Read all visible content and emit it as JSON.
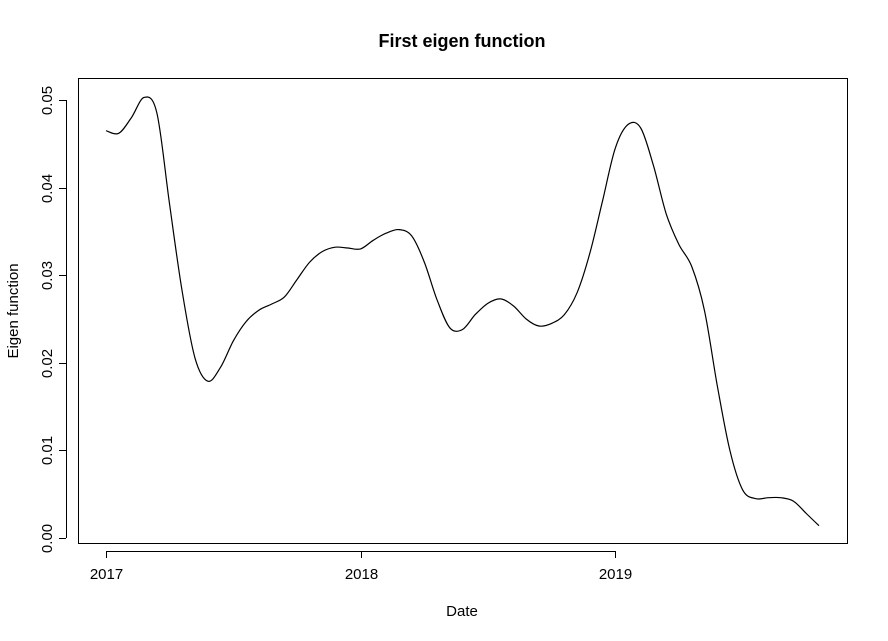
{
  "chart_data": {
    "type": "line",
    "title": "First eigen function",
    "xlabel": "Date",
    "ylabel": "Eigen function",
    "xlim": [
      2017,
      2019.8
    ],
    "ylim": [
      0,
      0.05
    ],
    "x_ticks": [
      2017,
      2018,
      2019
    ],
    "x_tick_labels": [
      "2017",
      "2018",
      "2019"
    ],
    "y_ticks": [
      0,
      0.01,
      0.02,
      0.03,
      0.04,
      0.05
    ],
    "y_tick_labels": [
      "0.00",
      "0.01",
      "0.02",
      "0.03",
      "0.04",
      "0.05"
    ],
    "grid": false,
    "legend": "none",
    "line_color": "#000000",
    "series": [
      {
        "x": [
          2017.0,
          2017.05,
          2017.1,
          2017.15,
          2017.2,
          2017.25,
          2017.3,
          2017.35,
          2017.4,
          2017.45,
          2017.5,
          2017.55,
          2017.6,
          2017.65,
          2017.7,
          2017.75,
          2017.8,
          2017.85,
          2017.9,
          2017.95,
          2018.0,
          2018.05,
          2018.1,
          2018.15,
          2018.2,
          2018.25,
          2018.3,
          2018.35,
          2018.4,
          2018.45,
          2018.5,
          2018.55,
          2018.6,
          2018.65,
          2018.7,
          2018.75,
          2018.8,
          2018.85,
          2018.9,
          2018.95,
          2019.0,
          2019.05,
          2019.1,
          2019.15,
          2019.2,
          2019.25,
          2019.3,
          2019.35,
          2019.4,
          2019.45,
          2019.5,
          2019.55,
          2019.6,
          2019.65,
          2019.7,
          2019.75,
          2019.8
        ],
        "y": [
          0.0465,
          0.0462,
          0.048,
          0.0503,
          0.0485,
          0.038,
          0.028,
          0.0205,
          0.0179,
          0.0195,
          0.0225,
          0.0247,
          0.026,
          0.0267,
          0.0275,
          0.0295,
          0.0315,
          0.0327,
          0.0332,
          0.0331,
          0.033,
          0.034,
          0.0348,
          0.0352,
          0.0345,
          0.0315,
          0.0272,
          0.024,
          0.0238,
          0.0255,
          0.0268,
          0.0273,
          0.0265,
          0.025,
          0.0242,
          0.0245,
          0.0255,
          0.028,
          0.0325,
          0.0385,
          0.0445,
          0.0472,
          0.0468,
          0.0425,
          0.037,
          0.0335,
          0.031,
          0.026,
          0.0175,
          0.01,
          0.0055,
          0.0045,
          0.0046,
          0.0046,
          0.0042,
          0.0028,
          0.0014
        ]
      }
    ]
  }
}
